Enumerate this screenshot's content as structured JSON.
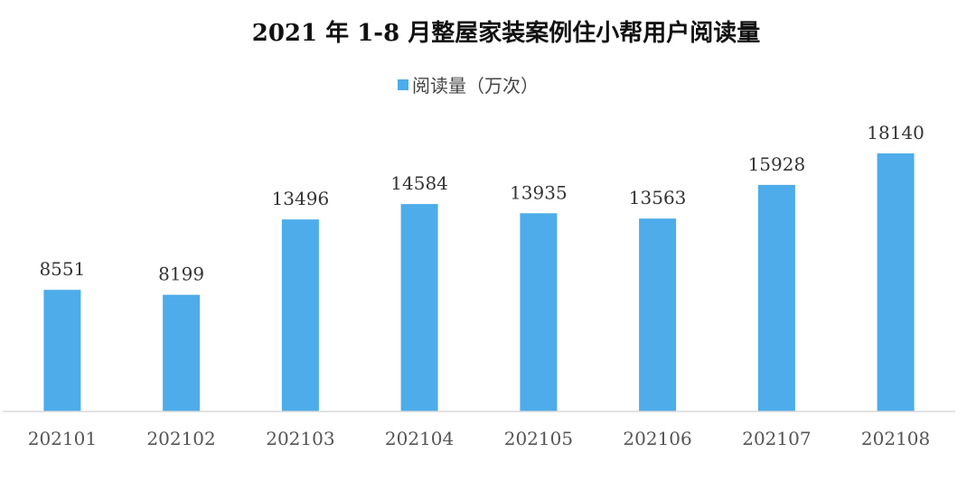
{
  "chart_data": {
    "type": "bar",
    "title": "2021 年 1-8 月整屋家装案例住小帮用户阅读量",
    "categories": [
      "202101",
      "202102",
      "202103",
      "202104",
      "202105",
      "202106",
      "202107",
      "202108"
    ],
    "series": [
      {
        "name": "阅读量（万次）",
        "values": [
          8551,
          8199,
          13496,
          14584,
          13935,
          13563,
          15928,
          18140
        ],
        "color": "#4DACE9"
      }
    ],
    "data_labels": true,
    "ylim": [
      0,
      20000
    ],
    "y_axis_visible": false,
    "grid": false,
    "legend_position": "top-center",
    "axis_color": "#D9D9D9"
  }
}
